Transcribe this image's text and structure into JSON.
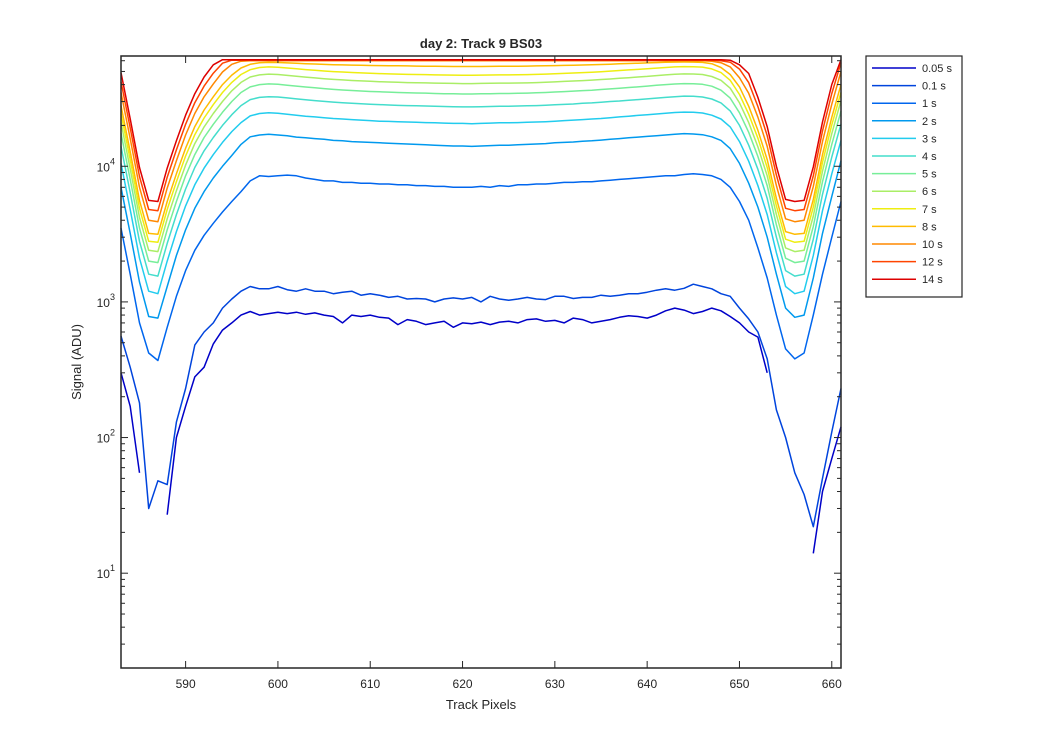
{
  "chart_data": {
    "type": "line",
    "title": "day 2: Track 9  BS03",
    "xlabel": "Track Pixels",
    "ylabel": "Signal (ADU)",
    "xlim": [
      583,
      661
    ],
    "ylim": [
      2,
      65000
    ],
    "yscale": "log",
    "grid": false,
    "legend_position": "outside-right",
    "x_ticks": [
      590,
      600,
      610,
      620,
      630,
      640,
      650,
      660
    ],
    "y_ticks": [
      {
        "value": 10,
        "mantissa": "10",
        "exp": "1"
      },
      {
        "value": 100,
        "mantissa": "10",
        "exp": "2"
      },
      {
        "value": 1000,
        "mantissa": "10",
        "exp": "3"
      },
      {
        "value": 10000,
        "mantissa": "10",
        "exp": "4"
      }
    ],
    "x": [
      583,
      584,
      585,
      586,
      587,
      588,
      589,
      590,
      591,
      592,
      593,
      594,
      595,
      596,
      597,
      598,
      599,
      600,
      601,
      602,
      603,
      604,
      605,
      606,
      607,
      608,
      609,
      610,
      611,
      612,
      613,
      614,
      615,
      616,
      617,
      618,
      619,
      620,
      621,
      622,
      623,
      624,
      625,
      626,
      627,
      628,
      629,
      630,
      631,
      632,
      633,
      634,
      635,
      636,
      637,
      638,
      639,
      640,
      641,
      642,
      643,
      644,
      645,
      646,
      647,
      648,
      649,
      650,
      651,
      652,
      653,
      654,
      655,
      656,
      657,
      658,
      659,
      660,
      661
    ],
    "series": [
      {
        "name": "0.05 s",
        "color": "#0000c8",
        "values": [
          300,
          170,
          55,
          null,
          null,
          27,
          100,
          170,
          280,
          330,
          490,
          620,
          700,
          800,
          850,
          800,
          820,
          840,
          820,
          840,
          810,
          830,
          800,
          780,
          700,
          800,
          780,
          800,
          770,
          760,
          680,
          740,
          720,
          680,
          700,
          720,
          650,
          700,
          690,
          710,
          680,
          710,
          720,
          700,
          740,
          750,
          720,
          730,
          700,
          760,
          740,
          700,
          720,
          740,
          770,
          790,
          780,
          760,
          800,
          860,
          900,
          870,
          820,
          850,
          900,
          860,
          780,
          700,
          600,
          550,
          300,
          null,
          40,
          null,
          null,
          14,
          40,
          70,
          120
        ]
      },
      {
        "name": "0.1 s",
        "color": "#0044dd",
        "values": [
          560,
          330,
          180,
          30,
          48,
          45,
          130,
          230,
          480,
          600,
          700,
          900,
          1050,
          1200,
          1300,
          1250,
          1250,
          1300,
          1230,
          1200,
          1250,
          1200,
          1200,
          1150,
          1180,
          1200,
          1120,
          1150,
          1120,
          1080,
          1100,
          1050,
          1060,
          1050,
          1000,
          1050,
          1070,
          1050,
          1080,
          1000,
          1100,
          1050,
          1030,
          1050,
          1080,
          1050,
          1040,
          1100,
          1100,
          1060,
          1080,
          1080,
          1120,
          1100,
          1120,
          1150,
          1150,
          1180,
          1220,
          1250,
          1220,
          1260,
          1350,
          1300,
          1250,
          1150,
          1100,
          900,
          750,
          600,
          380,
          160,
          100,
          55,
          38,
          22,
          50,
          110,
          230
        ]
      },
      {
        "name": "1 s",
        "color": "#0066ee",
        "values": [
          3500,
          1600,
          700,
          420,
          370,
          650,
          1100,
          1700,
          2400,
          3100,
          3800,
          4600,
          5500,
          6500,
          7800,
          8500,
          8400,
          8500,
          8600,
          8500,
          8200,
          8000,
          7800,
          7800,
          7600,
          7600,
          7500,
          7500,
          7400,
          7400,
          7300,
          7300,
          7200,
          7200,
          7100,
          7100,
          7000,
          7000,
          7000,
          7100,
          7000,
          7200,
          7100,
          7300,
          7300,
          7400,
          7400,
          7500,
          7600,
          7600,
          7700,
          7700,
          7800,
          7900,
          8000,
          8100,
          8200,
          8300,
          8400,
          8500,
          8500,
          8700,
          8800,
          8700,
          8500,
          8000,
          7000,
          5500,
          4000,
          2500,
          1500,
          800,
          450,
          380,
          420,
          800,
          1600,
          3000,
          5500
        ]
      },
      {
        "name": "2 s",
        "color": "#0099ee",
        "values": [
          7000,
          3200,
          1400,
          780,
          760,
          1300,
          2200,
          3400,
          4900,
          6500,
          8200,
          10000,
          12000,
          14500,
          16500,
          17000,
          17200,
          17000,
          16800,
          16400,
          16200,
          16000,
          15800,
          15500,
          15400,
          15200,
          15100,
          15000,
          14900,
          14800,
          14700,
          14600,
          14500,
          14400,
          14300,
          14200,
          14100,
          14100,
          14000,
          14100,
          14200,
          14300,
          14300,
          14400,
          14500,
          14600,
          14700,
          14900,
          15000,
          15100,
          15300,
          15400,
          15600,
          15800,
          16000,
          16200,
          16400,
          16600,
          16800,
          17000,
          17200,
          17400,
          17300,
          17100,
          16500,
          15500,
          13500,
          10500,
          7500,
          5000,
          3000,
          1600,
          900,
          770,
          800,
          1500,
          3200,
          6000,
          11000
        ]
      },
      {
        "name": "3 s",
        "color": "#22ccee",
        "values": [
          10500,
          4800,
          2100,
          1200,
          1150,
          2000,
          3300,
          5100,
          7300,
          9700,
          12200,
          15000,
          18000,
          21000,
          23500,
          24500,
          24800,
          24600,
          24200,
          23800,
          23400,
          23100,
          22800,
          22500,
          22300,
          22100,
          21900,
          21700,
          21500,
          21400,
          21300,
          21200,
          21100,
          21000,
          20900,
          20800,
          20700,
          20700,
          20600,
          20700,
          20800,
          20900,
          20900,
          21000,
          21100,
          21200,
          21300,
          21500,
          21700,
          21900,
          22100,
          22300,
          22500,
          22800,
          23100,
          23400,
          23700,
          24000,
          24300,
          24600,
          24900,
          25100,
          25000,
          24700,
          23800,
          22300,
          19500,
          15200,
          10900,
          7200,
          4400,
          2300,
          1300,
          1150,
          1200,
          2200,
          4700,
          8800,
          15500
        ]
      },
      {
        "name": "4 s",
        "color": "#44ddcc",
        "values": [
          14000,
          6400,
          2800,
          1600,
          1550,
          2700,
          4400,
          6800,
          9800,
          13000,
          16300,
          20000,
          24000,
          28000,
          31000,
          32200,
          32600,
          32400,
          31900,
          31400,
          30900,
          30500,
          30100,
          29700,
          29400,
          29100,
          28900,
          28700,
          28500,
          28300,
          28100,
          28000,
          27900,
          27800,
          27700,
          27600,
          27500,
          27400,
          27400,
          27500,
          27600,
          27700,
          27700,
          27800,
          27900,
          28000,
          28200,
          28400,
          28600,
          28800,
          29100,
          29300,
          29600,
          30000,
          30300,
          30700,
          31000,
          31400,
          31800,
          32200,
          32600,
          32900,
          32800,
          32400,
          31300,
          29300,
          25600,
          20000,
          14300,
          9500,
          5800,
          3000,
          1700,
          1550,
          1600,
          2900,
          6200,
          11700,
          20500
        ]
      },
      {
        "name": "5 s",
        "color": "#77ee99",
        "values": [
          17500,
          8000,
          3500,
          2000,
          1950,
          3400,
          5500,
          8500,
          12200,
          16300,
          20400,
          25000,
          30000,
          35000,
          38500,
          40000,
          40500,
          40200,
          39600,
          39000,
          38400,
          37900,
          37400,
          36900,
          36500,
          36200,
          35900,
          35600,
          35400,
          35200,
          35000,
          34800,
          34700,
          34600,
          34400,
          34300,
          34200,
          34100,
          34100,
          34200,
          34300,
          34400,
          34400,
          34500,
          34600,
          34800,
          35000,
          35300,
          35500,
          35800,
          36100,
          36400,
          36800,
          37200,
          37600,
          38100,
          38500,
          39000,
          39500,
          40000,
          40400,
          40700,
          40600,
          40200,
          38900,
          36400,
          31800,
          24800,
          17800,
          11800,
          7200,
          3700,
          2100,
          1950,
          2000,
          3600,
          7700,
          14500,
          25500
        ]
      },
      {
        "name": "6 s",
        "color": "#aaee66",
        "values": [
          21000,
          9600,
          4200,
          2400,
          2350,
          4100,
          6600,
          10200,
          14700,
          19500,
          24500,
          30000,
          36000,
          41500,
          45500,
          47200,
          47800,
          47500,
          46800,
          46100,
          45400,
          44800,
          44200,
          43700,
          43300,
          42900,
          42600,
          42300,
          42000,
          41800,
          41600,
          41400,
          41300,
          41200,
          41000,
          40900,
          40800,
          40700,
          40700,
          40800,
          40900,
          41000,
          41000,
          41100,
          41200,
          41400,
          41600,
          41900,
          42200,
          42500,
          42800,
          43200,
          43600,
          44000,
          44500,
          45000,
          45500,
          46000,
          46600,
          47200,
          47700,
          48000,
          47900,
          47500,
          45900,
          43000,
          37600,
          29300,
          21000,
          13900,
          8500,
          4400,
          2500,
          2350,
          2400,
          4300,
          9200,
          17400,
          30500
        ]
      },
      {
        "name": "7 s",
        "color": "#eeee11",
        "values": [
          24500,
          11200,
          4900,
          2800,
          2750,
          4800,
          7700,
          11900,
          17100,
          22700,
          28500,
          35000,
          41500,
          47500,
          51500,
          53500,
          54000,
          53700,
          53000,
          52300,
          51600,
          51000,
          50400,
          49900,
          49500,
          49100,
          48800,
          48500,
          48200,
          48000,
          47800,
          47600,
          47500,
          47400,
          47200,
          47100,
          47000,
          46900,
          46900,
          47000,
          47100,
          47200,
          47200,
          47300,
          47400,
          47600,
          47800,
          48100,
          48400,
          48700,
          49000,
          49400,
          49800,
          50300,
          50800,
          51300,
          51800,
          52300,
          52900,
          53500,
          54000,
          54300,
          54200,
          53800,
          52200,
          49000,
          43000,
          33800,
          24200,
          16100,
          9800,
          5100,
          2900,
          2750,
          2800,
          5000,
          10700,
          20200,
          35000
        ]
      },
      {
        "name": "8 s",
        "color": "#ffbb00",
        "values": [
          28000,
          12800,
          5600,
          3200,
          3150,
          5500,
          8800,
          13600,
          19600,
          26000,
          32500,
          40000,
          47000,
          53000,
          56500,
          58000,
          58300,
          58200,
          57800,
          57400,
          57000,
          56700,
          56400,
          56100,
          55900,
          55700,
          55500,
          55300,
          55200,
          55100,
          55000,
          54900,
          54800,
          54700,
          54600,
          54500,
          54400,
          54400,
          54400,
          54400,
          54500,
          54600,
          54600,
          54700,
          54800,
          54900,
          55000,
          55200,
          55400,
          55600,
          55800,
          56000,
          56300,
          56600,
          56900,
          57200,
          57500,
          57800,
          58100,
          58400,
          58600,
          58700,
          58600,
          58300,
          57000,
          53500,
          47500,
          38500,
          27700,
          18400,
          11200,
          5800,
          3300,
          3150,
          3200,
          5700,
          12200,
          23000,
          40000
        ]
      },
      {
        "name": "10 s",
        "color": "#ff8800",
        "values": [
          35000,
          16000,
          7000,
          4000,
          3900,
          6900,
          11000,
          17000,
          24500,
          32500,
          40500,
          49500,
          56500,
          59500,
          60000,
          60000,
          60000,
          60000,
          60000,
          60000,
          60000,
          60000,
          60000,
          60000,
          60000,
          60000,
          60000,
          60000,
          60000,
          60000,
          60000,
          60000,
          60000,
          60000,
          60000,
          60000,
          60000,
          60000,
          60000,
          60000,
          60000,
          60000,
          60000,
          60000,
          60000,
          60000,
          60000,
          60000,
          60000,
          60000,
          60000,
          60000,
          60000,
          60000,
          60000,
          60000,
          60000,
          60000,
          60000,
          60000,
          60000,
          60000,
          60000,
          60000,
          59500,
          58000,
          54000,
          45000,
          34500,
          23000,
          14000,
          7200,
          4100,
          3900,
          4000,
          7100,
          15200,
          28700,
          50000
        ]
      },
      {
        "name": "12 s",
        "color": "#ff4400",
        "values": [
          42000,
          19200,
          8400,
          4800,
          4700,
          8300,
          13200,
          20400,
          29400,
          39000,
          48500,
          57500,
          60500,
          60500,
          60500,
          60500,
          60500,
          60500,
          60500,
          60500,
          60500,
          60500,
          60500,
          60500,
          60500,
          60500,
          60500,
          60500,
          60500,
          60500,
          60500,
          60500,
          60500,
          60500,
          60500,
          60500,
          60500,
          60500,
          60500,
          60500,
          60500,
          60500,
          60500,
          60500,
          60500,
          60500,
          60500,
          60500,
          60500,
          60500,
          60500,
          60500,
          60500,
          60500,
          60500,
          60500,
          60500,
          60500,
          60500,
          60500,
          60500,
          60500,
          60500,
          60500,
          60500,
          60000,
          58500,
          52000,
          41400,
          27600,
          16800,
          8600,
          4900,
          4700,
          4800,
          8500,
          18200,
          34400,
          58000
        ]
      },
      {
        "name": "14 s",
        "color": "#dd0000",
        "values": [
          49000,
          22400,
          9800,
          5600,
          5500,
          9700,
          15400,
          23800,
          34300,
          45500,
          56000,
          61000,
          61000,
          61000,
          61000,
          61000,
          61000,
          61000,
          61000,
          61000,
          61000,
          61000,
          61000,
          61000,
          61000,
          61000,
          61000,
          61000,
          61000,
          61000,
          61000,
          61000,
          61000,
          61000,
          61000,
          61000,
          61000,
          61000,
          61000,
          61000,
          61000,
          61000,
          61000,
          61000,
          61000,
          61000,
          61000,
          61000,
          61000,
          61000,
          61000,
          61000,
          61000,
          61000,
          61000,
          61000,
          61000,
          61000,
          61000,
          61000,
          61000,
          61000,
          61000,
          61000,
          61000,
          61000,
          60500,
          56000,
          48300,
          32200,
          19600,
          10000,
          5700,
          5500,
          5600,
          9900,
          21200,
          40100,
          61000
        ]
      }
    ]
  }
}
